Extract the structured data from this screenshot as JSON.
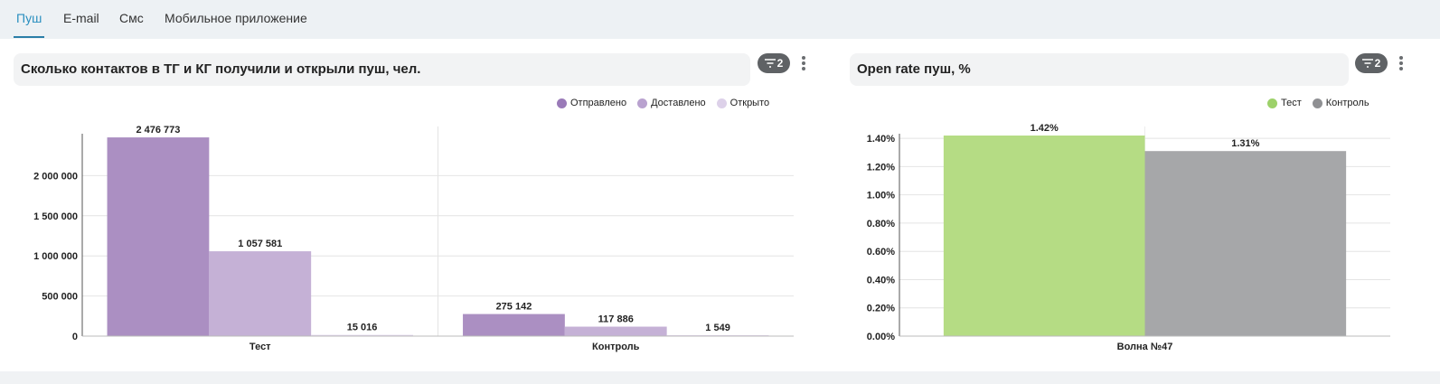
{
  "tabs": [
    {
      "label": "Пуш",
      "active": true
    },
    {
      "label": "E-mail",
      "active": false
    },
    {
      "label": "Смс",
      "active": false
    },
    {
      "label": "Мобильное приложение",
      "active": false
    }
  ],
  "charts": [
    {
      "title": "Сколько контактов в ТГ и КГ получили и открыли пуш, чел.",
      "filter_count": "2"
    },
    {
      "title": "Open rate пуш, %",
      "filter_count": "2"
    }
  ],
  "chart_data": [
    {
      "type": "bar",
      "title": "Сколько контактов в ТГ и КГ получили и открыли пуш, чел.",
      "categories": [
        "Тест",
        "Контроль"
      ],
      "series": [
        {
          "name": "Отправлено",
          "values": [
            2476773,
            275142
          ],
          "labels": [
            "2 476 773",
            "275 142"
          ],
          "color": "#ab8fc2"
        },
        {
          "name": "Доставлено",
          "values": [
            1057581,
            117886
          ],
          "labels": [
            "1 057 581",
            "117 886"
          ],
          "color": "#c5b1d6"
        },
        {
          "name": "Открыто",
          "values": [
            15016,
            1549
          ],
          "labels": [
            "15 016",
            "1 549"
          ],
          "color": "#ddd1e9"
        }
      ],
      "yticks": [
        0,
        500000,
        1000000,
        1500000,
        2000000
      ],
      "ytick_labels": [
        "0",
        "500 000",
        "1 000 000",
        "1 500 000",
        "2 000 000"
      ],
      "ylim": [
        0,
        2500000
      ],
      "grid": true,
      "legend_position": "top-right"
    },
    {
      "type": "bar",
      "title": "Open rate пуш, %",
      "categories": [
        "Волна №47"
      ],
      "series": [
        {
          "name": "Тест",
          "values": [
            1.42
          ],
          "labels": [
            "1.42%"
          ],
          "color": "#b5dc84"
        },
        {
          "name": "Контроль",
          "values": [
            1.31
          ],
          "labels": [
            "1.31%"
          ],
          "color": "#a6a7a9"
        }
      ],
      "yticks": [
        0,
        0.2,
        0.4,
        0.6,
        0.8,
        1.0,
        1.2,
        1.4
      ],
      "ytick_labels": [
        "0.00%",
        "0.20%",
        "0.40%",
        "0.60%",
        "0.80%",
        "1.00%",
        "1.20%",
        "1.40%"
      ],
      "ylim": [
        0,
        1.42
      ],
      "grid": true,
      "legend_position": "top-right"
    }
  ]
}
